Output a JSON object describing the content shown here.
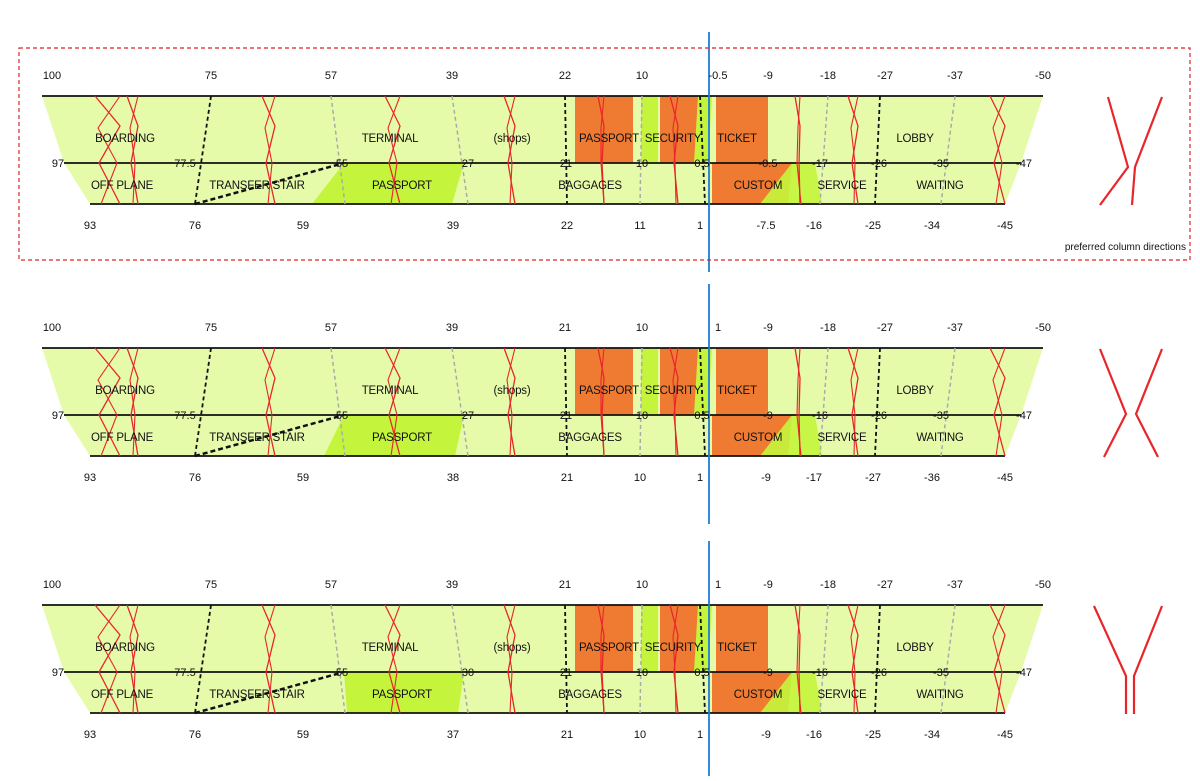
{
  "note_label": "preferred column directions",
  "colors": {
    "band": "#e6fbaa",
    "highlight": "#c4f53c",
    "orange": "#ef7b32",
    "red": "#e8262a",
    "axis": "#1a7fd6",
    "frame": "#e0232b",
    "black_dash": "#111111",
    "grey_dash": "#aaaaaa"
  },
  "panels": [
    {
      "top_numbers": [
        "100",
        "75",
        "57",
        "39",
        "22",
        "10",
        "-0.5",
        "-9",
        "-18",
        "-27",
        "-37",
        "-50"
      ],
      "mid_numbers": [
        "97",
        "77.5",
        "55",
        "27",
        "21",
        "10",
        "0.5",
        "-0.5",
        "-17",
        "-26",
        "-35",
        "-47"
      ],
      "bottom_numbers": [
        "93",
        "76",
        "59",
        "39",
        "22",
        "11",
        "1",
        "-7.5",
        "-16",
        "-25",
        "-34",
        "-45"
      ],
      "zones_top": [
        "BOARDING",
        "TERMINAL",
        "(shops)",
        "PASSPORT",
        "SECURITY",
        "TICKET",
        "LOBBY"
      ],
      "zones_bottom": [
        "OFF PLANE",
        "TRANSFER STAIR",
        "PASSPORT",
        "BAGGAGES",
        "CUSTOM",
        "SERVICE",
        "WAITING"
      ]
    },
    {
      "top_numbers": [
        "100",
        "75",
        "57",
        "39",
        "21",
        "10",
        "1",
        "-9",
        "-18",
        "-27",
        "-37",
        "-50"
      ],
      "mid_numbers": [
        "97",
        "77.5",
        "55",
        "27",
        "21",
        "10",
        "0.5",
        "-9",
        "-16",
        "-26",
        "-35",
        "-47"
      ],
      "bottom_numbers": [
        "93",
        "76",
        "59",
        "38",
        "21",
        "10",
        "1",
        "-9",
        "-17",
        "-27",
        "-36",
        "-45"
      ],
      "zones_top": [
        "BOARDING",
        "TERMINAL",
        "(shops)",
        "PASSPORT",
        "SECURITY",
        "TICKET",
        "LOBBY"
      ],
      "zones_bottom": [
        "OFF PLANE",
        "TRANSFER STAIR",
        "PASSPORT",
        "BAGGAGES",
        "CUSTOM",
        "SERVICE",
        "WAITING"
      ]
    },
    {
      "top_numbers": [
        "100",
        "75",
        "57",
        "39",
        "21",
        "10",
        "1",
        "-9",
        "-18",
        "-27",
        "-37",
        "-50"
      ],
      "mid_numbers": [
        "97",
        "77.5",
        "55",
        "30",
        "21",
        "10",
        "0.5",
        "-9",
        "-16",
        "-26",
        "-35",
        "-47"
      ],
      "bottom_numbers": [
        "93",
        "76",
        "59",
        "37",
        "21",
        "10",
        "1",
        "-9",
        "-16",
        "-25",
        "-34",
        "-45"
      ],
      "zones_top": [
        "BOARDING",
        "TERMINAL",
        "(shops)",
        "PASSPORT",
        "SECURITY",
        "TICKET",
        "LOBBY"
      ],
      "zones_bottom": [
        "OFF PLANE",
        "TRANSFER STAIR",
        "PASSPORT",
        "BAGGAGES",
        "CUSTOM",
        "SERVICE",
        "WAITING"
      ]
    }
  ]
}
